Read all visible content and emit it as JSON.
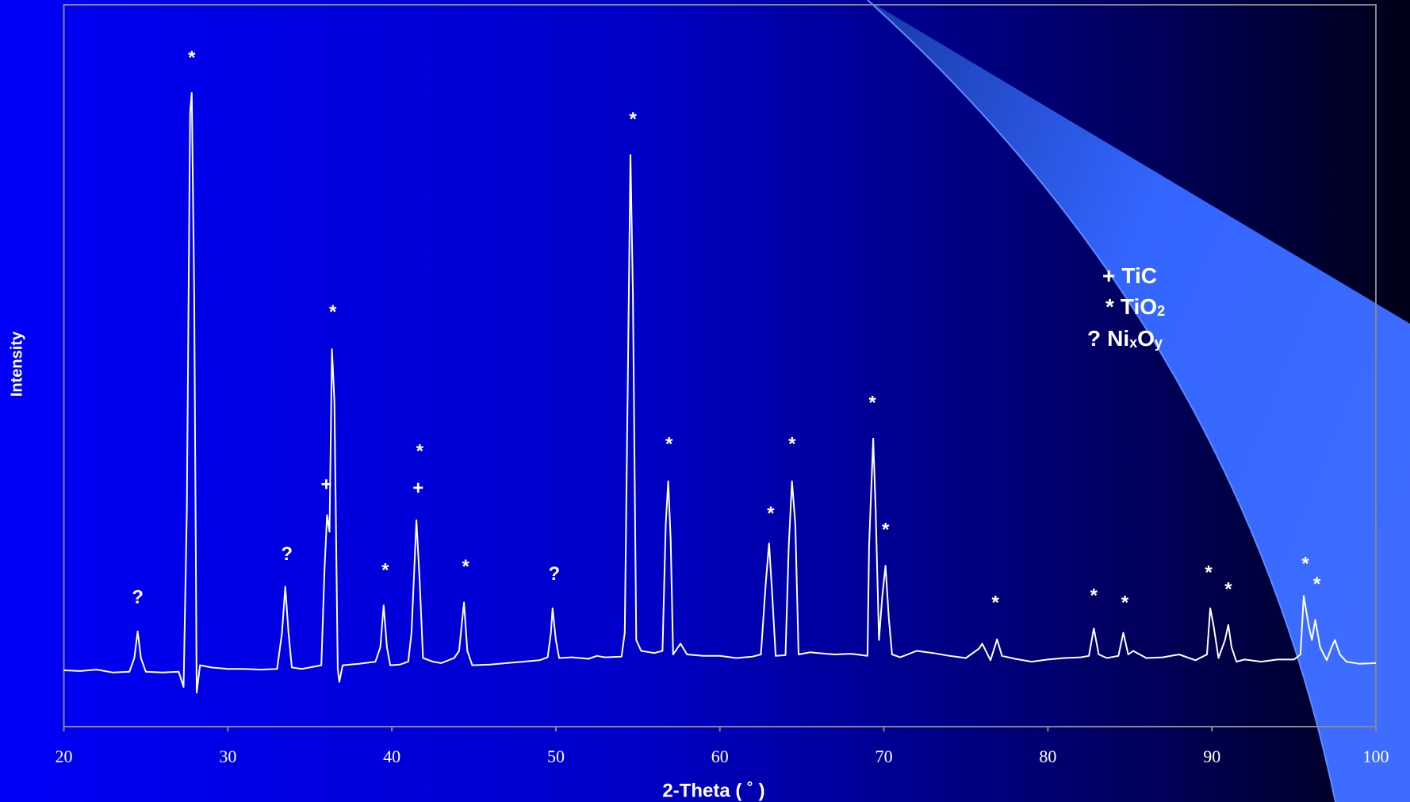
{
  "chart_data": {
    "type": "line",
    "x_label": "2-Theta ( ˚ )",
    "y_label": "Intensity",
    "color": "#ffffff",
    "xlim": [
      20,
      100
    ],
    "xticks": [
      20,
      30,
      40,
      50,
      60,
      70,
      80,
      90,
      100
    ],
    "ylim": [
      0,
      100
    ],
    "x": [
      20,
      21,
      22,
      23,
      24,
      24.3,
      24.5,
      24.7,
      25,
      26,
      27,
      27.3,
      27.5,
      27.7,
      27.8,
      27.95,
      28.1,
      28.3,
      29,
      30,
      31,
      32,
      33,
      33.3,
      33.5,
      33.7,
      33.9,
      34.5,
      35,
      35.7,
      35.9,
      36.05,
      36.2,
      36.35,
      36.5,
      36.7,
      36.8,
      37,
      38,
      39,
      39.3,
      39.5,
      39.7,
      39.9,
      40.5,
      41,
      41.2,
      41.5,
      41.7,
      41.9,
      42.5,
      43,
      43.8,
      44.1,
      44.4,
      44.6,
      44.9,
      46,
      47,
      48,
      49,
      49.5,
      49.7,
      49.8,
      50,
      50.2,
      51,
      52,
      52.5,
      53,
      54,
      54.2,
      54.4,
      54.55,
      54.7,
      54.9,
      55.2,
      56,
      56.5,
      56.7,
      56.85,
      57,
      57.15,
      57.6,
      58,
      59,
      60,
      61,
      62,
      62.5,
      62.8,
      63,
      63.2,
      63.4,
      64,
      64.2,
      64.4,
      64.6,
      64.8,
      65.5,
      66,
      67,
      68,
      69,
      69.1,
      69.35,
      69.5,
      69.7,
      69.9,
      70.1,
      70.3,
      70.5,
      71,
      72,
      73,
      74,
      75,
      75.8,
      76,
      76.5,
      76.9,
      77.2,
      78,
      79,
      80,
      81,
      82,
      82.5,
      82.8,
      83.1,
      83.6,
      84.3,
      84.6,
      84.9,
      85.2,
      86,
      87,
      88,
      89,
      89.7,
      89.9,
      90.1,
      90.4,
      90.8,
      91,
      91.2,
      91.5,
      92,
      93,
      94,
      95,
      95.4,
      95.6,
      95.9,
      96.1,
      96.3,
      96.6,
      97,
      97.3,
      97.5,
      97.8,
      98.2,
      99,
      100
    ],
    "values": [
      7.8,
      7.7,
      7.9,
      7.5,
      7.6,
      9.5,
      13.2,
      9.5,
      7.6,
      7.5,
      7.6,
      5.5,
      30,
      85,
      87.8,
      60,
      4.7,
      8.5,
      8.2,
      8.0,
      8.0,
      7.9,
      8.0,
      13,
      19.4,
      13,
      8.2,
      8.0,
      8.2,
      8.5,
      22,
      29.3,
      27,
      52.3,
      45,
      8,
      6.2,
      8.5,
      8.7,
      9.0,
      11,
      16.8,
      11,
      8.5,
      8.6,
      9,
      13,
      28.6,
      20,
      9.5,
      9.0,
      8.8,
      9.5,
      10.5,
      17.2,
      10.5,
      8.5,
      8.6,
      8.8,
      9.0,
      9.2,
      9.6,
      13,
      16.4,
      12,
      9.5,
      9.6,
      9.4,
      9.8,
      9.6,
      9.7,
      13,
      50,
      79.2,
      60,
      12,
      10.5,
      10.2,
      10.5,
      28,
      34.0,
      26,
      10,
      11.5,
      10,
      9.8,
      9.8,
      9.5,
      9.7,
      10,
      20,
      25.4,
      18,
      9.8,
      9.9,
      25,
      34,
      28,
      10,
      10.3,
      10.2,
      10,
      10.1,
      9.8,
      25,
      39.9,
      30,
      12,
      18,
      22.3,
      15,
      10,
      9.6,
      10.5,
      10.2,
      9.8,
      9.5,
      10.8,
      11.5,
      9.2,
      12.1,
      9.8,
      9.4,
      9.0,
      9.3,
      9.5,
      9.6,
      9.8,
      13.6,
      10,
      9.5,
      9.8,
      13.0,
      10,
      10.5,
      9.5,
      9.6,
      10.0,
      9.2,
      10,
      16.4,
      14,
      9.5,
      12,
      14.1,
      11,
      9.0,
      9.3,
      9.0,
      9.3,
      9.3,
      10,
      18.1,
      14,
      12,
      14.8,
      11,
      9.2,
      11,
      12.0,
      10,
      9,
      8.7,
      8.8
    ],
    "annotations": [
      {
        "text": "?",
        "x": 24.5,
        "y": 17.8
      },
      {
        "text": "*",
        "x": 27.8,
        "y": 92.5
      },
      {
        "text": "?",
        "x": 33.6,
        "y": 23.8
      },
      {
        "text": "+",
        "x": 36.0,
        "y": 33.4
      },
      {
        "text": "*",
        "x": 36.4,
        "y": 57.3
      },
      {
        "text": "*",
        "x": 39.6,
        "y": 21.5
      },
      {
        "text": "*",
        "x": 41.7,
        "y": 38
      },
      {
        "text": "+",
        "x": 41.6,
        "y": 32.9
      },
      {
        "text": "*",
        "x": 44.5,
        "y": 22
      },
      {
        "text": "?",
        "x": 49.9,
        "y": 21
      },
      {
        "text": "*",
        "x": 54.7,
        "y": 84
      },
      {
        "text": "*",
        "x": 56.9,
        "y": 39
      },
      {
        "text": "*",
        "x": 63.1,
        "y": 29.4
      },
      {
        "text": "*",
        "x": 64.4,
        "y": 39
      },
      {
        "text": "*",
        "x": 69.3,
        "y": 44.7
      },
      {
        "text": "*",
        "x": 70.1,
        "y": 27.1
      },
      {
        "text": "*",
        "x": 76.8,
        "y": 17
      },
      {
        "text": "*",
        "x": 82.8,
        "y": 18
      },
      {
        "text": "*",
        "x": 84.7,
        "y": 17
      },
      {
        "text": "*",
        "x": 89.8,
        "y": 21.2
      },
      {
        "text": "*",
        "x": 91.0,
        "y": 18.9
      },
      {
        "text": "*",
        "x": 95.7,
        "y": 22.4
      },
      {
        "text": "*",
        "x": 96.4,
        "y": 19.6
      }
    ],
    "legend": [
      {
        "symbol": "+",
        "parts": [
          {
            "text": "TiC"
          }
        ]
      },
      {
        "symbol": "*",
        "parts": [
          {
            "text": "TiO"
          },
          {
            "text": "2",
            "sub": true
          }
        ]
      },
      {
        "symbol": "?",
        "parts": [
          {
            "text": "Ni"
          },
          {
            "text": "x",
            "sub": true
          },
          {
            "text": "O"
          },
          {
            "text": "y",
            "sub": true
          }
        ]
      }
    ]
  }
}
